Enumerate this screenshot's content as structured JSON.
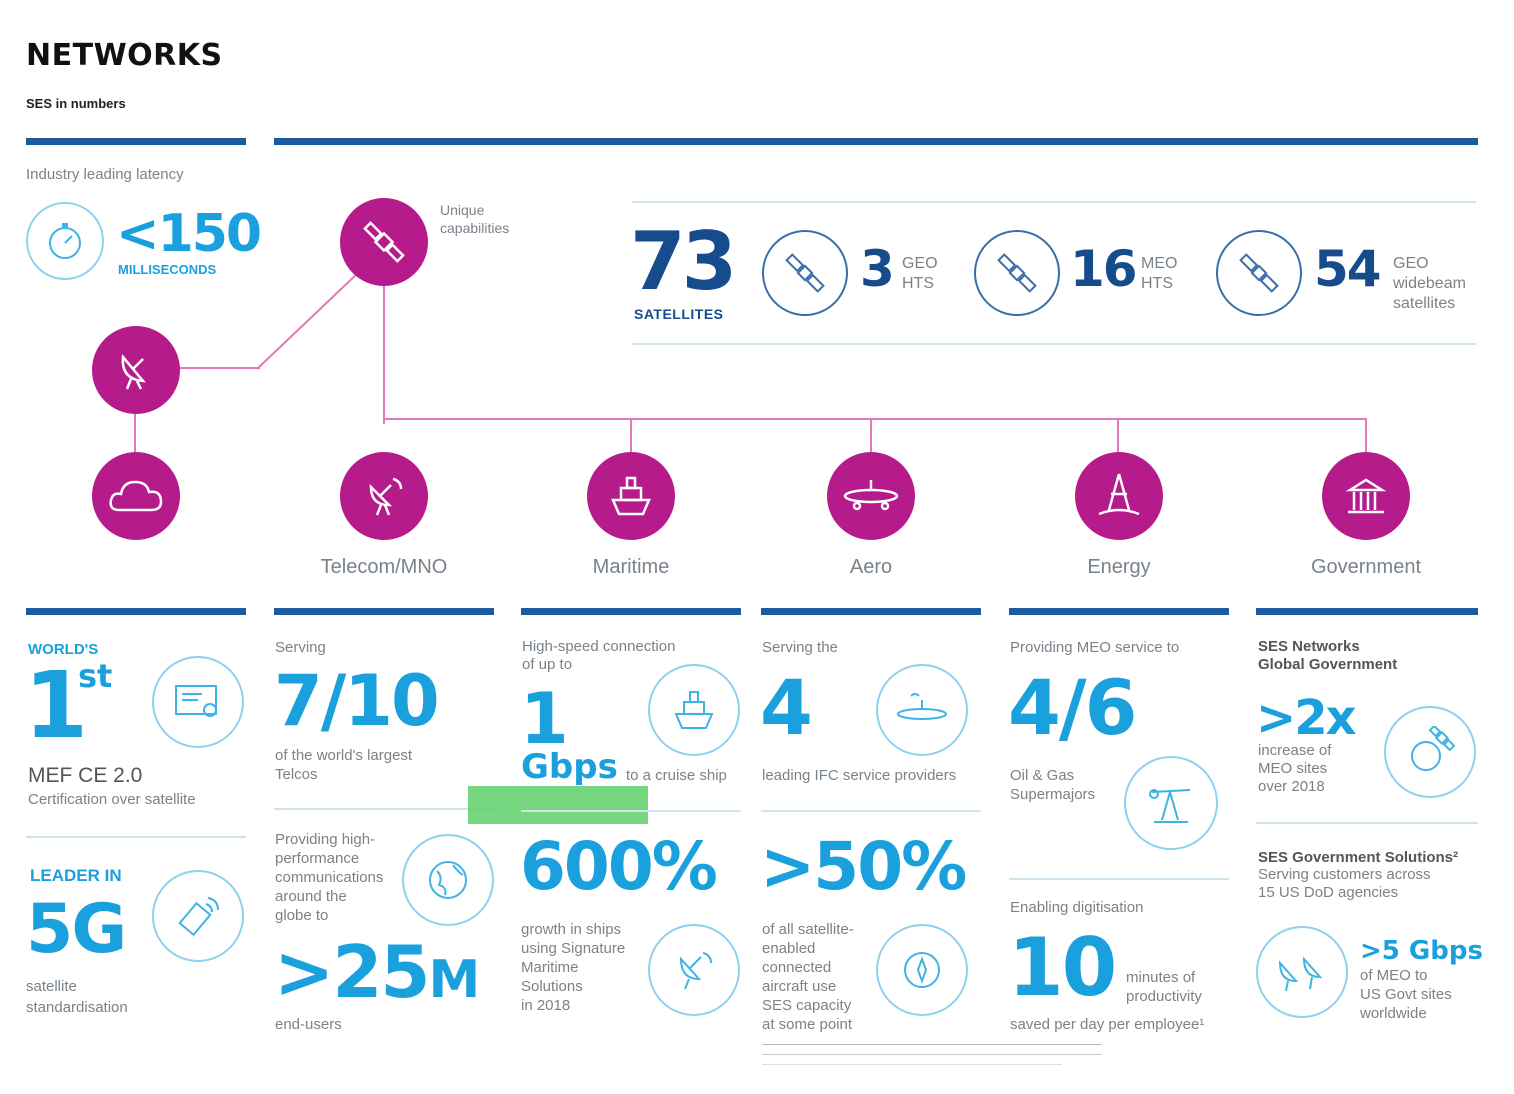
{
  "header": {
    "title": "NETWORKS",
    "subtitle": "SES in numbers"
  },
  "latency": {
    "caption": "Industry leading latency",
    "value": "<150",
    "unit": "MILLISECONDS"
  },
  "unique": {
    "caption": "Unique\ncapabilities"
  },
  "satellites": {
    "total": "73",
    "total_label": "SATELLITES",
    "groups": [
      {
        "value": "3",
        "label": "GEO\nHTS"
      },
      {
        "value": "16",
        "label": "MEO\nHTS"
      },
      {
        "value": "54",
        "label": "GEO\nwidebeam\nsatellites"
      }
    ]
  },
  "sectors": [
    "Telecom/MNO",
    "Maritime",
    "Aero",
    "Energy",
    "Government"
  ],
  "col1": {
    "label1": "WORLD'S",
    "value1": "1",
    "sup1": "st",
    "text1a": "MEF CE 2.0",
    "text1b": "Certification over satellite",
    "label2": "LEADER IN",
    "value2": "5G",
    "text2": "satellite\nstandardisation"
  },
  "col2": {
    "caption": "Serving",
    "value": "7/10",
    "text": "of the world's largest\nTelcos",
    "text2": "Providing high-\nperformance\ncommunications\naround the\nglobe to",
    "value2": ">25",
    "value2_suffix": "M",
    "text3": "end-users"
  },
  "col3": {
    "caption": "High-speed connection\nof up to",
    "value": "1",
    "unit": "Gbps",
    "text": "to a cruise ship",
    "value2": "600%",
    "text2": "growth in ships\nusing Signature\nMaritime\nSolutions\nin 2018"
  },
  "col4": {
    "caption": "Serving the",
    "value": "4",
    "text": "leading IFC service providers",
    "value2": ">50%",
    "text2": "of all satellite-\nenabled\nconnected\naircraft use\nSES capacity\nat some point"
  },
  "col5": {
    "caption": "Providing MEO service to",
    "value": "4/6",
    "text": "Oil & Gas\nSupermajors",
    "caption2": "Enabling digitisation",
    "value2": "10",
    "text2": "minutes of\nproductivity",
    "text3": "saved per day per employee¹"
  },
  "col6": {
    "heading": "SES Networks\nGlobal Government",
    "value": ">2x",
    "text": "increase of\nMEO sites\nover 2018",
    "heading2": "SES Government Solutions²",
    "text2": "Serving customers across\n15 US DoD agencies",
    "value2": ">5 Gbps",
    "text3": "of MEO to\nUS Govt sites\nworldwide"
  },
  "colors": {
    "navy": "#1d5aa0",
    "cyan": "#1aa0dc",
    "magenta": "#b51b8a",
    "highlight": "#5fd06a"
  },
  "icons": [
    "stopwatch-icon",
    "satellite-icon",
    "satellite-dish-icon",
    "cloud-icon",
    "ship-icon",
    "plane-icon",
    "oil-rig-icon",
    "government-building-icon",
    "certificate-icon",
    "phone-5g-icon",
    "globe-icon",
    "compass-icon",
    "pump-jack-icon"
  ]
}
